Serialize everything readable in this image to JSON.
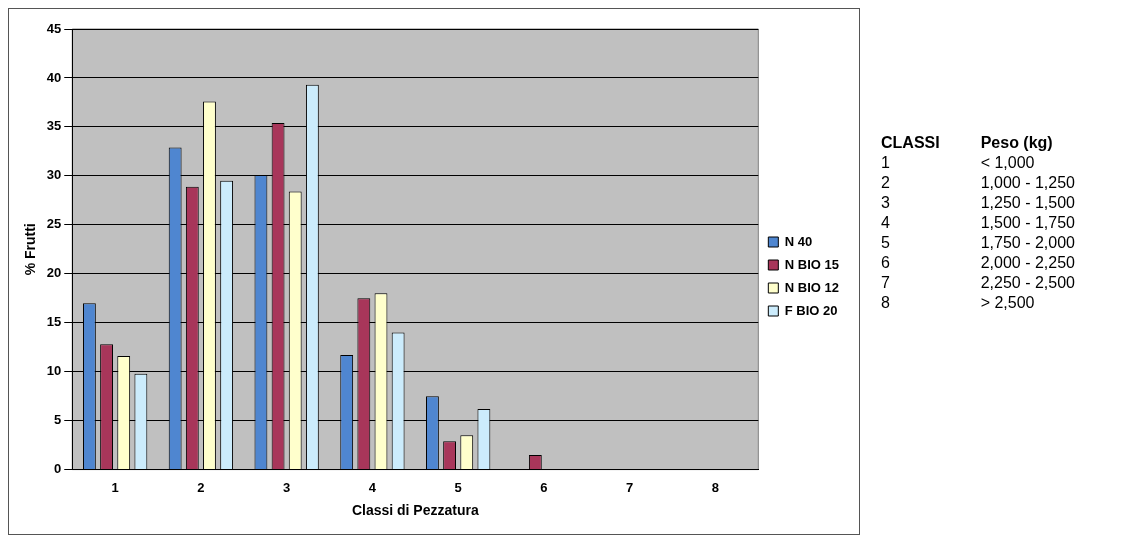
{
  "chart_data": {
    "type": "bar",
    "xlabel": "Classi di Pezzatura",
    "ylabel": "% Frutti",
    "categories": [
      "1",
      "2",
      "3",
      "4",
      "5",
      "6",
      "7",
      "8"
    ],
    "series": [
      {
        "name": "N 40",
        "color": "#4f86d0",
        "values": [
          17.0,
          32.9,
          30.1,
          11.7,
          7.5,
          0,
          0,
          0
        ]
      },
      {
        "name": "N BIO 15",
        "color": "#a8365a",
        "values": [
          12.8,
          28.9,
          35.4,
          17.5,
          2.9,
          1.5,
          0,
          0
        ]
      },
      {
        "name": "N BIO 12",
        "color": "#ffffcc",
        "values": [
          11.6,
          37.6,
          28.4,
          18.0,
          3.5,
          0,
          0,
          0
        ]
      },
      {
        "name": "F BIO 20",
        "color": "#ccecfc",
        "values": [
          9.8,
          29.5,
          39.3,
          14.0,
          6.2,
          0,
          0,
          0
        ]
      }
    ],
    "ylim": [
      0,
      45
    ],
    "yticks": [
      0,
      5,
      10,
      15,
      20,
      25,
      30,
      35,
      40,
      45
    ],
    "grid": "y",
    "legend": "right",
    "annotations": [
      "CLASSI",
      "Peso (kg)",
      "1",
      "< 1,000",
      "2",
      "1,000 - 1,250",
      "3",
      "1,250 - 1,500",
      "4",
      "1,500 - 1,750",
      "5",
      "1,750 - 2,000",
      "6",
      "2,000 - 2,250",
      "7",
      "2,250 - 2,500",
      "8",
      "> 2,500"
    ]
  }
}
